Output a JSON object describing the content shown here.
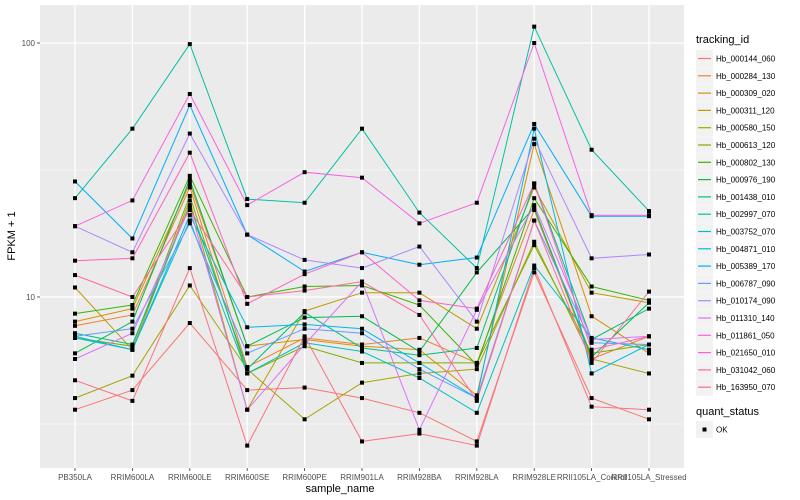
{
  "chart_data": {
    "type": "line",
    "title": "",
    "xlabel": "sample_name",
    "ylabel": "FPKM + 1",
    "y_scale": "log10",
    "ylim": [
      2.3,
      140
    ],
    "y_ticks": [
      10,
      100
    ],
    "y_tick_labels": [
      "10",
      "100"
    ],
    "grid": true,
    "legend_position": "right",
    "categories": [
      "PB350LA",
      "RRIM600LA",
      "RRIM600LE",
      "RRIM600SE",
      "RRIM600PE",
      "RRIM901LA",
      "RRIM928BA",
      "RRIM928LA",
      "RRIM928LE",
      "RRII105LA_Control",
      "RRII105LA_Stressed"
    ],
    "color_legend": {
      "title": "tracking_id"
    },
    "shape_legend": {
      "title": "quant_status",
      "entries": [
        "OK"
      ]
    },
    "series": [
      {
        "name": "Hb_000144_060",
        "color": "#F8766D",
        "values": [
          3.6,
          4.3,
          7.9,
          4.3,
          4.4,
          4.0,
          3.5,
          2.7,
          12.5,
          4.0,
          3.3
        ]
      },
      {
        "name": "Hb_000284_130",
        "color": "#EA8331",
        "values": [
          7.7,
          8.5,
          27.0,
          5.3,
          6.9,
          6.5,
          6.9,
          5.5,
          22.0,
          5.7,
          7.0
        ]
      },
      {
        "name": "Hb_000309_020",
        "color": "#D89000",
        "values": [
          8.0,
          9.0,
          28.0,
          6.4,
          6.8,
          6.4,
          6.2,
          4.1,
          40.0,
          8.4,
          6.0
        ]
      },
      {
        "name": "Hb_000311_120",
        "color": "#C09B00",
        "values": [
          10.9,
          6.2,
          24.0,
          3.6,
          8.8,
          10.4,
          10.4,
          7.5,
          27.0,
          10.4,
          9.5
        ]
      },
      {
        "name": "Hb_000580_150",
        "color": "#A3A500",
        "values": [
          4.0,
          4.9,
          11.1,
          5.2,
          3.3,
          4.6,
          5.0,
          5.2,
          16.5,
          5.7,
          5.0
        ]
      },
      {
        "name": "Hb_000613_120",
        "color": "#7CAE00",
        "values": [
          6.9,
          6.4,
          25.0,
          5.0,
          6.4,
          5.5,
          5.5,
          5.5,
          16.0,
          6.0,
          6.5
        ]
      },
      {
        "name": "Hb_000802_130",
        "color": "#39B600",
        "values": [
          8.6,
          9.3,
          30.0,
          10.0,
          11.0,
          11.1,
          9.3,
          5.4,
          24.5,
          11.0,
          9.7
        ]
      },
      {
        "name": "Hb_000976_190",
        "color": "#00BB4E",
        "values": [
          6.0,
          8.0,
          29.0,
          6.4,
          8.3,
          8.4,
          6.1,
          12.5,
          22.5,
          5.8,
          9.5
        ]
      },
      {
        "name": "Hb_001438_010",
        "color": "#00BF7D",
        "values": [
          7.2,
          6.5,
          23.0,
          5.2,
          8.7,
          6.3,
          5.9,
          6.3,
          28.0,
          6.8,
          9.0
        ]
      },
      {
        "name": "Hb_002997_070",
        "color": "#00C1A3",
        "values": [
          24.5,
          46.0,
          99.0,
          24.3,
          23.5,
          46.0,
          21.5,
          13.0,
          116.0,
          38.0,
          21.8
        ]
      },
      {
        "name": "Hb_003752_070",
        "color": "#00BFC4",
        "values": [
          6.9,
          6.2,
          20.0,
          5.0,
          6.6,
          6.1,
          4.8,
          3.5,
          13.3,
          6.9,
          6.2
        ]
      },
      {
        "name": "Hb_004871_010",
        "color": "#00B9E3",
        "values": [
          7.0,
          6.2,
          21.0,
          7.6,
          7.8,
          7.5,
          5.5,
          4.0,
          46.0,
          5.0,
          6.5
        ]
      },
      {
        "name": "Hb_005389_170",
        "color": "#00ADFA",
        "values": [
          28.5,
          17.0,
          57.0,
          17.6,
          12.6,
          15.0,
          13.4,
          14.3,
          48.0,
          20.8,
          20.8
        ]
      },
      {
        "name": "Hb_006787_090",
        "color": "#619CFF",
        "values": [
          7.0,
          7.5,
          19.5,
          6.0,
          7.5,
          7.2,
          5.2,
          4.0,
          20.0,
          6.6,
          6.5
        ]
      },
      {
        "name": "Hb_010174_090",
        "color": "#AE87FF",
        "values": [
          19.0,
          15.0,
          44.0,
          17.6,
          14.0,
          13.0,
          15.8,
          8.0,
          42.0,
          14.2,
          14.7
        ]
      },
      {
        "name": "Hb_011310_140",
        "color": "#DB72FB",
        "values": [
          5.7,
          7.2,
          22.5,
          3.6,
          6.5,
          11.5,
          3.0,
          8.9,
          23.0,
          6.8,
          7.0
        ]
      },
      {
        "name": "Hb_011861_050",
        "color": "#F564E3",
        "values": [
          19.0,
          24.0,
          63.0,
          23.0,
          31.0,
          29.5,
          19.5,
          23.5,
          100.0,
          21.0,
          21.0
        ]
      },
      {
        "name": "Hb_021650_010",
        "color": "#FF61C3",
        "values": [
          13.9,
          14.2,
          37.0,
          9.4,
          12.3,
          15.0,
          9.7,
          9.0,
          28.0,
          6.2,
          7.0
        ]
      },
      {
        "name": "Hb_031042_060",
        "color": "#FF699C",
        "values": [
          12.2,
          10.0,
          22.0,
          10.0,
          10.6,
          11.5,
          8.5,
          3.9,
          20.0,
          5.5,
          10.5
        ]
      },
      {
        "name": "Hb_163950_070",
        "color": "#FC717F",
        "values": [
          4.7,
          3.9,
          13.0,
          2.6,
          7.0,
          2.7,
          2.9,
          2.6,
          13.0,
          3.7,
          3.6
        ]
      }
    ]
  }
}
